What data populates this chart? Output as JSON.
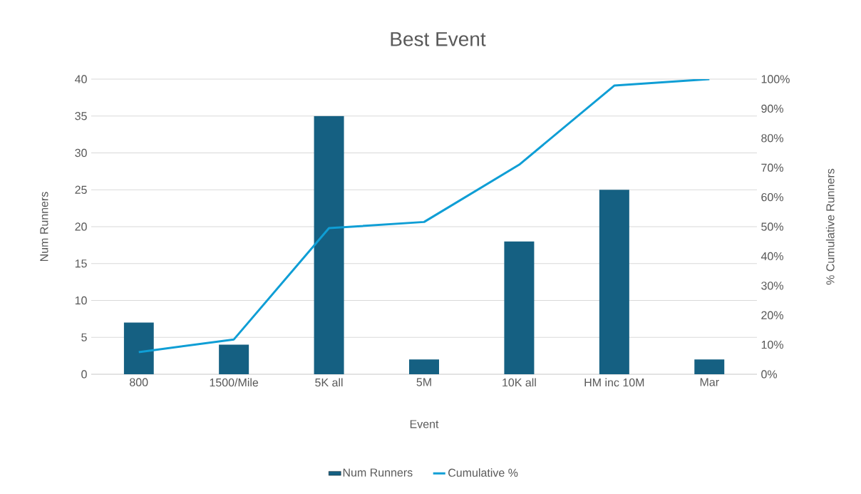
{
  "chart_data": {
    "type": "bar",
    "title": "Best Event",
    "xlabel": "Event",
    "ylabel": "Num Runners",
    "y2label": "% Cumulative Runners",
    "categories": [
      "800",
      "1500/Mile",
      "5K all",
      "5M",
      "10K all",
      "HM inc 10M",
      "Mar"
    ],
    "series": [
      {
        "name": "Num Runners",
        "color": "#156082",
        "values": [
          7,
          4,
          35,
          2,
          18,
          25,
          2
        ]
      },
      {
        "name": "Cumulative %",
        "type": "line",
        "axis": "y2",
        "color": "#0f9ed5",
        "values": [
          7.5,
          11.8,
          49.5,
          51.6,
          71.0,
          97.8,
          100
        ]
      }
    ],
    "ylim": [
      0,
      40
    ],
    "yticks": [
      0,
      5,
      10,
      15,
      20,
      25,
      30,
      35,
      40
    ],
    "y2lim": [
      0,
      100
    ],
    "y2ticks": [
      {
        "value": 0,
        "label": "0%"
      },
      {
        "value": 10,
        "label": "10%"
      },
      {
        "value": 20,
        "label": "20%"
      },
      {
        "value": 30,
        "label": "30%"
      },
      {
        "value": 40,
        "label": "40%"
      },
      {
        "value": 50,
        "label": "50%"
      },
      {
        "value": 60,
        "label": "60%"
      },
      {
        "value": 70,
        "label": "70%"
      },
      {
        "value": 80,
        "label": "80%"
      },
      {
        "value": 90,
        "label": "90%"
      },
      {
        "value": 100,
        "label": "100%"
      }
    ],
    "grid": "y",
    "legend": "bottom",
    "marker": "none",
    "line_style": "solid"
  }
}
